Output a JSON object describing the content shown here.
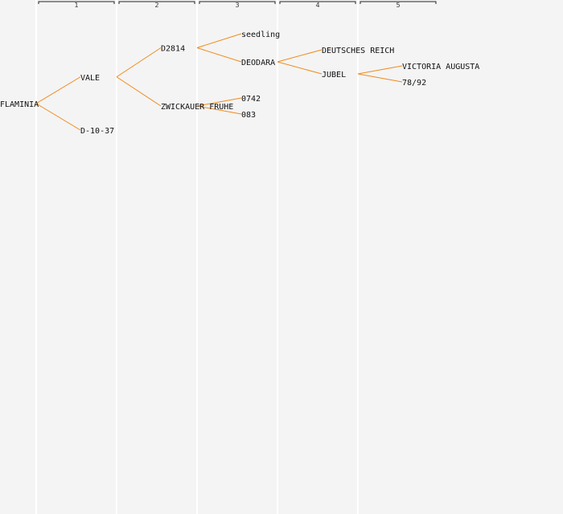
{
  "colors": {
    "background": "#f4f4f4",
    "edge": "#f08a1c",
    "column_line": "#ffffff",
    "header_bracket": "#222222",
    "text": "#111111"
  },
  "generations": [
    "1",
    "2",
    "3",
    "4",
    "5"
  ],
  "pedigree": {
    "name": "FLAMINIA",
    "children": [
      {
        "name": "VALE",
        "children": [
          {
            "name": "D2814",
            "children": [
              {
                "name": "seedling"
              },
              {
                "name": "DEODARA",
                "children": [
                  {
                    "name": "DEUTSCHES REICH"
                  },
                  {
                    "name": "JUBEL",
                    "children": [
                      {
                        "name": "VICTORIA AUGUSTA"
                      },
                      {
                        "name": "78/92"
                      }
                    ]
                  }
                ]
              }
            ]
          },
          {
            "name": "ZWICKAUER FRUHE",
            "children": [
              {
                "name": "0742"
              },
              {
                "name": "083"
              }
            ]
          }
        ]
      },
      {
        "name": "D-10-37"
      }
    ]
  }
}
